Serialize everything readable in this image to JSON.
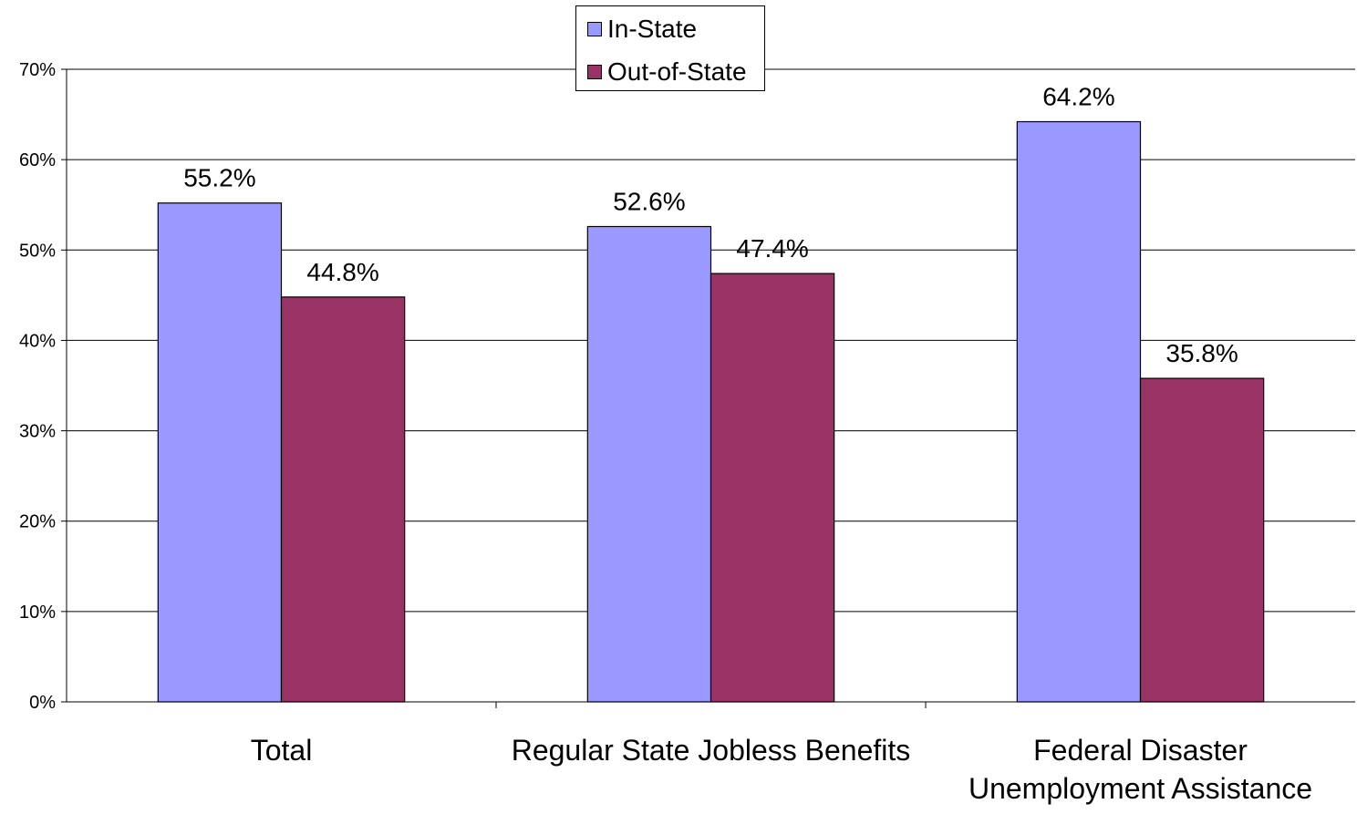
{
  "chart_data": {
    "type": "bar",
    "categories": [
      [
        "Total"
      ],
      [
        "Regular State Jobless Benefits"
      ],
      [
        "Federal Disaster",
        "Unemployment Assistance"
      ]
    ],
    "series": [
      {
        "name": "In-State",
        "values": [
          55.2,
          52.6,
          64.2
        ],
        "labels": [
          "55.2%",
          "52.6%",
          "64.2%"
        ],
        "color": "#9999ff"
      },
      {
        "name": "Out-of-State",
        "values": [
          44.8,
          47.4,
          35.8
        ],
        "labels": [
          "44.8%",
          "47.4%",
          "35.8%"
        ],
        "color": "#993366"
      }
    ],
    "ylim": [
      0,
      70
    ],
    "yticks": [
      0,
      10,
      20,
      30,
      40,
      50,
      60,
      70
    ],
    "ytick_labels": [
      "0%",
      "10%",
      "20%",
      "30%",
      "40%",
      "50%",
      "60%",
      "70%"
    ],
    "gridlines": true,
    "legend_position": "top-center",
    "title": "",
    "xlabel": "",
    "ylabel": ""
  }
}
